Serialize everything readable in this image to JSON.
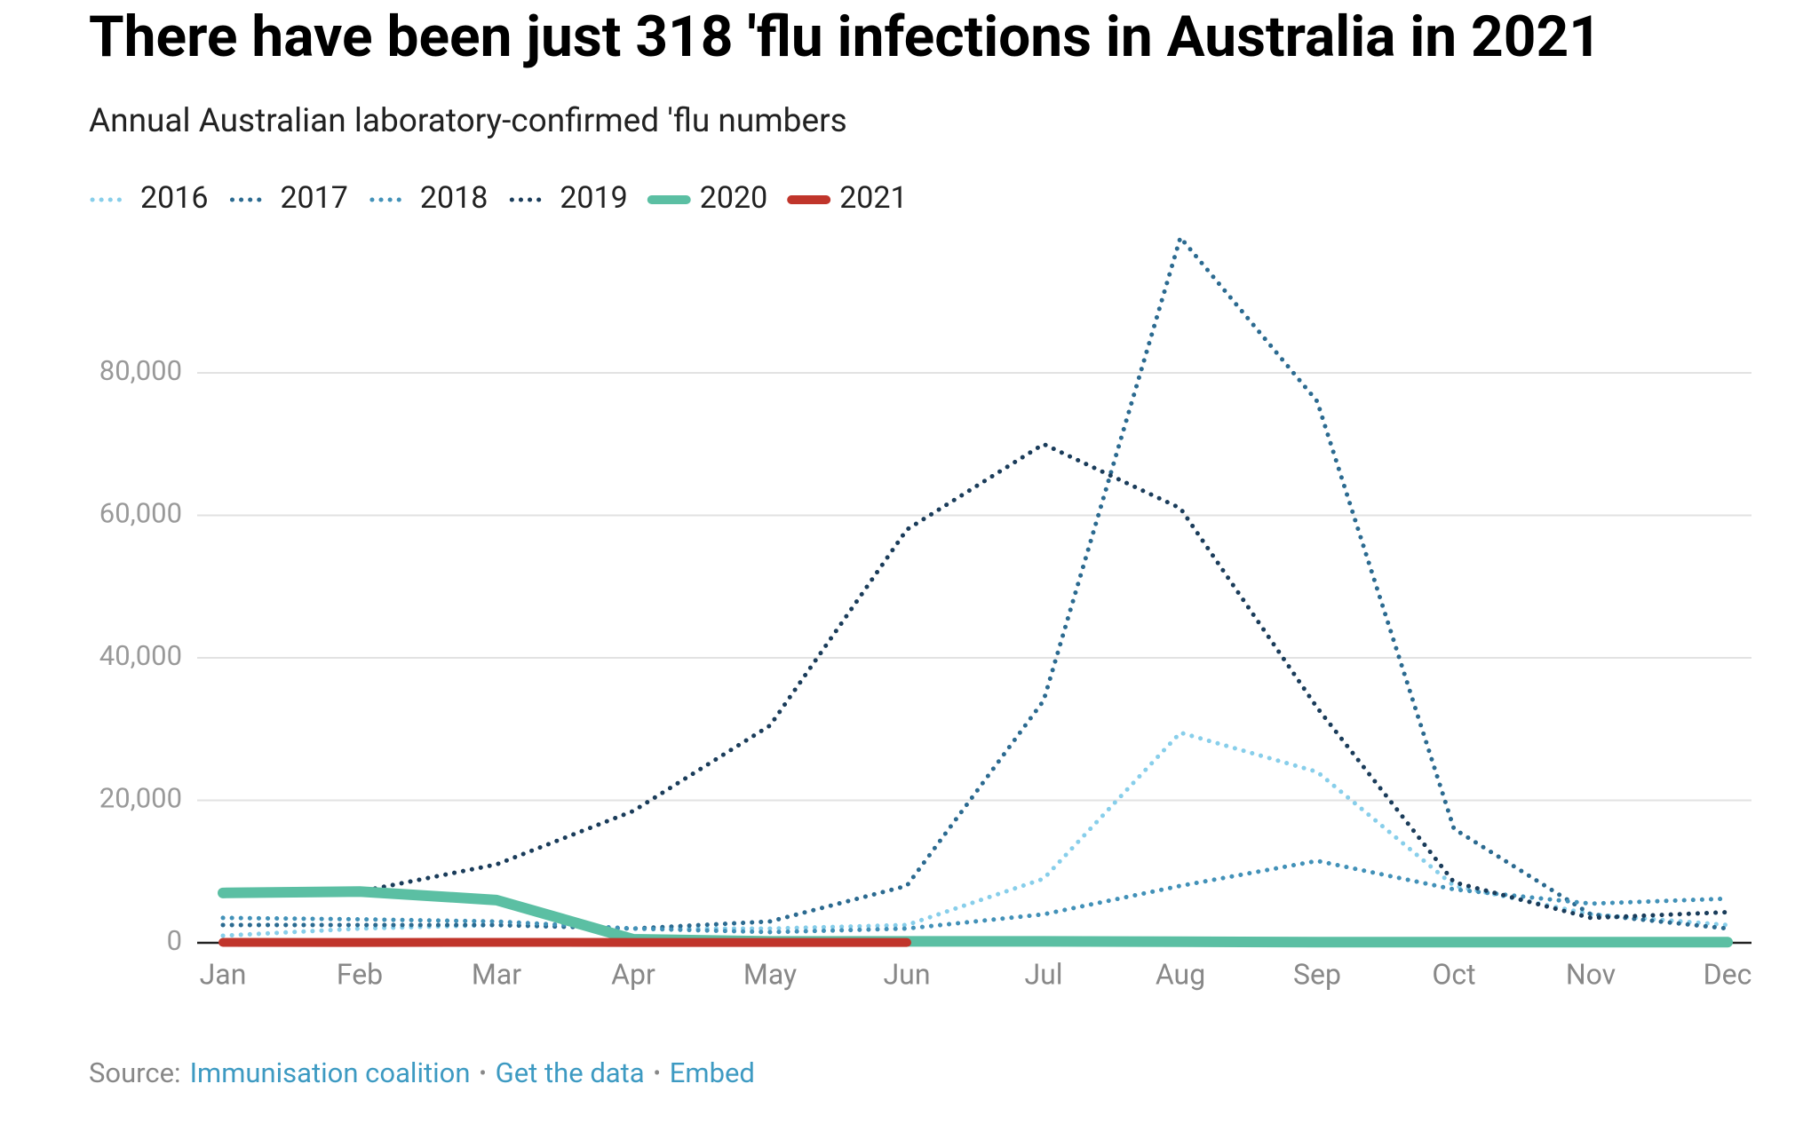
{
  "chart_data": {
    "type": "line",
    "title": "There have been just 318 'flu infections in Australia in 2021",
    "subtitle": "Annual Australian laboratory-confirmed 'flu numbers",
    "categories": [
      "Jan",
      "Feb",
      "Mar",
      "Apr",
      "May",
      "Jun",
      "Jul",
      "Aug",
      "Sep",
      "Oct",
      "Nov",
      "Dec"
    ],
    "series": [
      {
        "name": "2016",
        "color": "#87ceea",
        "style": "dotted",
        "values": [
          1000,
          2000,
          2500,
          2000,
          2000,
          2500,
          9000,
          29500,
          24000,
          8000,
          4000,
          2500
        ]
      },
      {
        "name": "2017",
        "color": "#2b6a90",
        "style": "dotted",
        "values": [
          2500,
          2500,
          2500,
          2000,
          3000,
          8000,
          34000,
          99000,
          76000,
          16000,
          4000,
          2000
        ]
      },
      {
        "name": "2018",
        "color": "#4291b8",
        "style": "dotted",
        "values": [
          3500,
          3300,
          3000,
          2000,
          1500,
          2000,
          4000,
          8000,
          11500,
          7500,
          5500,
          6200
        ]
      },
      {
        "name": "2019",
        "color": "#1a3c5a",
        "style": "dotted",
        "values": [
          6800,
          7200,
          11000,
          18500,
          30500,
          58000,
          70000,
          61000,
          33000,
          8500,
          3500,
          4300
        ]
      },
      {
        "name": "2020",
        "color": "#5bbfa3",
        "style": "solid",
        "values": [
          7000,
          7200,
          6000,
          500,
          200,
          200,
          200,
          150,
          100,
          100,
          100,
          100
        ]
      },
      {
        "name": "2021",
        "color": "#c0352b",
        "style": "solid",
        "values": [
          60,
          50,
          60,
          50,
          50,
          50,
          null,
          null,
          null,
          null,
          null,
          null
        ]
      }
    ],
    "ylim": [
      0,
      100000
    ],
    "yticks": [
      0,
      {
        "value": 20000,
        "label": "20,000"
      },
      {
        "value": 40000,
        "label": "40,000"
      },
      {
        "value": 60000,
        "label": "60,000"
      },
      {
        "value": 80000,
        "label": "80,000"
      }
    ],
    "grid": true,
    "legend": "top-left",
    "source": {
      "label": "Source:",
      "separator": "•",
      "links": [
        "Immunisation coalition",
        "Get the data",
        "Embed"
      ]
    }
  }
}
